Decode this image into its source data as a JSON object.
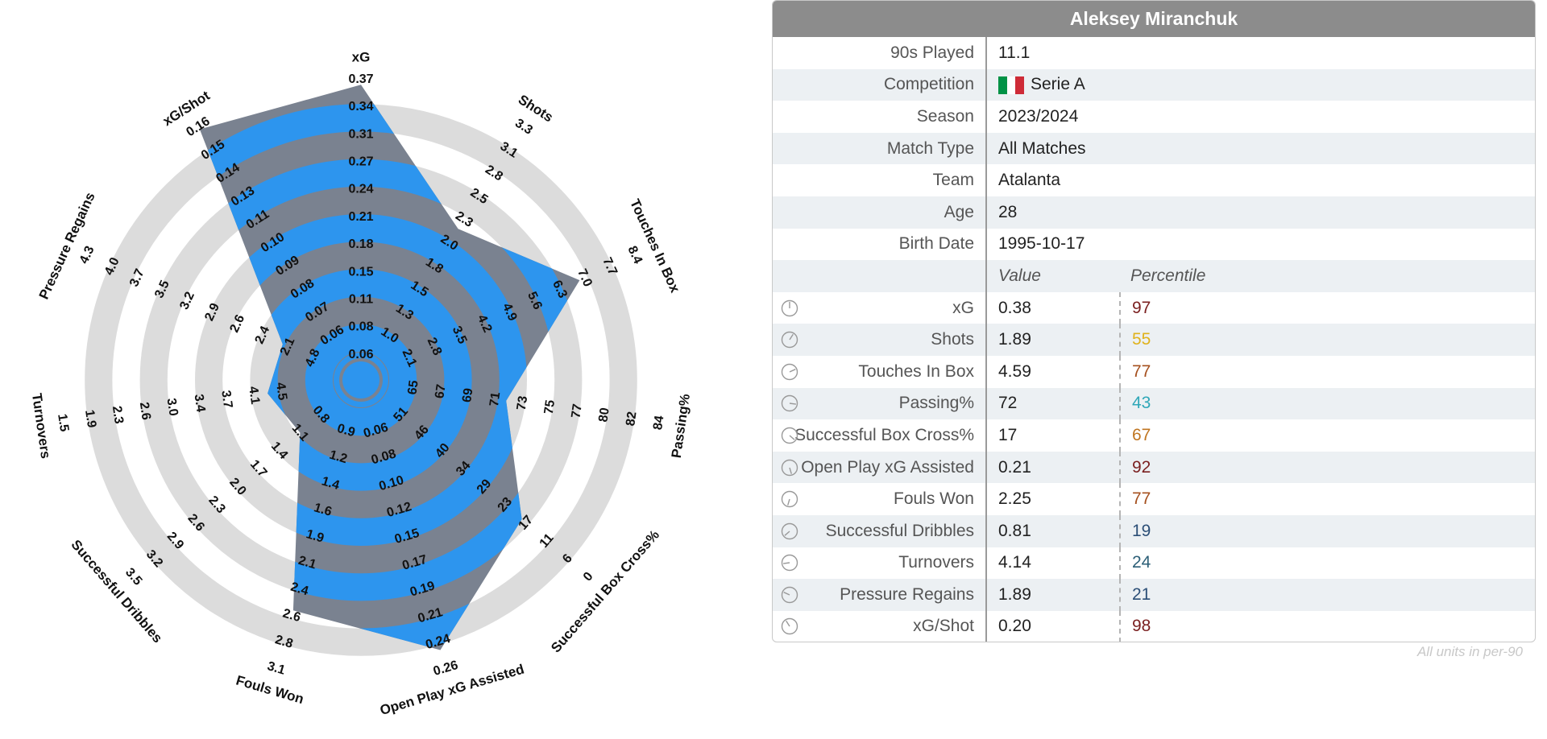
{
  "chart_data": {
    "type": "radar",
    "player": "Aleksey Miranchuk",
    "metrics": [
      {
        "name": "xG",
        "value": 0.38,
        "percentile": 97,
        "ticks": [
          "0.06",
          "0.08",
          "0.11",
          "0.15",
          "0.18",
          "0.21",
          "0.24",
          "0.27",
          "0.31",
          "0.34",
          "0.37"
        ]
      },
      {
        "name": "Shots",
        "value": 1.89,
        "percentile": 55,
        "ticks": [
          "1.0",
          "1.3",
          "1.5",
          "1.8",
          "2.0",
          "2.3",
          "2.5",
          "2.8",
          "3.1",
          "3.3"
        ]
      },
      {
        "name": "Touches In Box",
        "value": 4.59,
        "percentile": 77,
        "ticks": [
          "2.1",
          "2.8",
          "3.5",
          "4.2",
          "4.9",
          "5.6",
          "6.3",
          "7.0",
          "7.7",
          "8.4"
        ]
      },
      {
        "name": "Passing%",
        "value": 72,
        "percentile": 43,
        "ticks": [
          "65",
          "67",
          "69",
          "71",
          "73",
          "75",
          "77",
          "80",
          "82",
          "84"
        ]
      },
      {
        "name": "Successful Box Cross%",
        "value": 17,
        "percentile": 67,
        "ticks": [
          "51",
          "46",
          "40",
          "34",
          "29",
          "23",
          "17",
          "11",
          "6",
          "0"
        ]
      },
      {
        "name": "Open Play xG Assisted",
        "value": 0.21,
        "percentile": 92,
        "ticks": [
          "0.06",
          "0.08",
          "0.10",
          "0.12",
          "0.15",
          "0.17",
          "0.19",
          "0.21",
          "0.24",
          "0.26"
        ]
      },
      {
        "name": "Fouls Won",
        "value": 2.25,
        "percentile": 77,
        "ticks": [
          "0.9",
          "1.2",
          "1.4",
          "1.6",
          "1.9",
          "2.1",
          "2.4",
          "2.6",
          "2.8",
          "3.1"
        ]
      },
      {
        "name": "Successful Dribbles",
        "value": 0.81,
        "percentile": 19,
        "ticks": [
          "0.8",
          "1.1",
          "1.4",
          "1.7",
          "2.0",
          "2.3",
          "2.6",
          "2.9",
          "3.2",
          "3.5"
        ]
      },
      {
        "name": "Turnovers",
        "value": 4.14,
        "percentile": 24,
        "ticks": [
          "4.5",
          "4.1",
          "3.7",
          "3.4",
          "3.0",
          "2.6",
          "2.3",
          "1.9",
          "1.5"
        ]
      },
      {
        "name": "Pressure Regains",
        "value": 1.89,
        "percentile": 21,
        "ticks": [
          "4.8",
          "2.1",
          "2.4",
          "2.6",
          "2.9",
          "3.2",
          "3.5",
          "3.7",
          "4.0",
          "4.3"
        ]
      },
      {
        "name": "xG/Shot",
        "value": 0.2,
        "percentile": 98,
        "ticks": [
          "0.06",
          "0.07",
          "0.08",
          "0.09",
          "0.10",
          "0.11",
          "0.13",
          "0.14",
          "0.15",
          "0.16"
        ]
      }
    ],
    "colors": {
      "fill": "#7a8290",
      "band_light": "#2d95ee",
      "band_dark": "#7a8290",
      "ring": "#dcdcdc"
    }
  },
  "card": {
    "title": "Aleksey Miranchuk",
    "info": [
      {
        "label": "90s Played",
        "value": "11.1"
      },
      {
        "label": "Competition",
        "value": "Serie A"
      },
      {
        "label": "Season",
        "value": "2023/2024"
      },
      {
        "label": "Match Type",
        "value": "All Matches"
      },
      {
        "label": "Team",
        "value": "Atalanta"
      },
      {
        "label": "Age",
        "value": "28"
      },
      {
        "label": "Birth Date",
        "value": "1995-10-17"
      }
    ],
    "header": {
      "value": "Value",
      "percentile": "Percentile"
    },
    "metrics": [
      {
        "label": "xG",
        "value": "0.38",
        "percentile": "97",
        "color": "#7a1f1f"
      },
      {
        "label": "Shots",
        "value": "1.89",
        "percentile": "55",
        "color": "#e0b21c"
      },
      {
        "label": "Touches In Box",
        "value": "4.59",
        "percentile": "77",
        "color": "#a5501e"
      },
      {
        "label": "Passing%",
        "value": "72",
        "percentile": "43",
        "color": "#2fa7b8"
      },
      {
        "label": "Successful Box Cross%",
        "value": "17",
        "percentile": "67",
        "color": "#c07520"
      },
      {
        "label": "Open Play xG Assisted",
        "value": "0.21",
        "percentile": "92",
        "color": "#7a1f1f"
      },
      {
        "label": "Fouls Won",
        "value": "2.25",
        "percentile": "77",
        "color": "#a5501e"
      },
      {
        "label": "Successful Dribbles",
        "value": "0.81",
        "percentile": "19",
        "color": "#2c4f77"
      },
      {
        "label": "Turnovers",
        "value": "4.14",
        "percentile": "24",
        "color": "#2c5f77"
      },
      {
        "label": "Pressure Regains",
        "value": "1.89",
        "percentile": "21",
        "color": "#2c4f77"
      },
      {
        "label": "xG/Shot",
        "value": "0.20",
        "percentile": "98",
        "color": "#7a1f1f"
      }
    ],
    "flag_colors": [
      "#009246",
      "#ffffff",
      "#ce2b37"
    ],
    "icon": "gauge-icon"
  },
  "footnote": "All units in per-90"
}
